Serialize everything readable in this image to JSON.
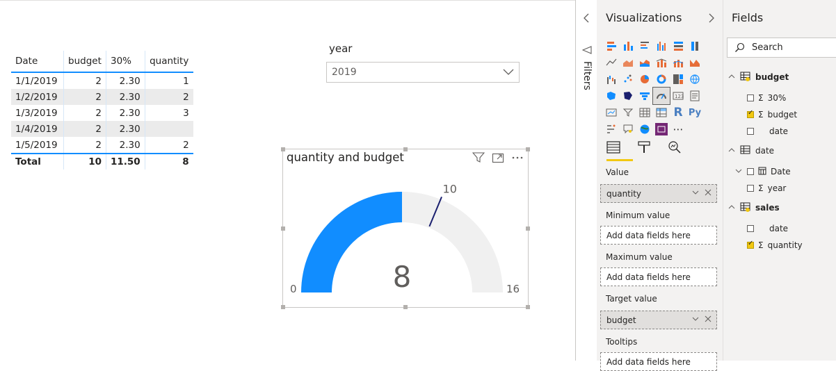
{
  "table": {
    "headers": [
      "Date",
      "budget",
      "30%",
      "quantity"
    ],
    "rows": [
      [
        "1/1/2019",
        "2",
        "2.30",
        "1"
      ],
      [
        "1/2/2019",
        "2",
        "2.30",
        "2"
      ],
      [
        "1/3/2019",
        "2",
        "2.30",
        "3"
      ],
      [
        "1/4/2019",
        "2",
        "2.30",
        ""
      ],
      [
        "1/5/2019",
        "2",
        "2.30",
        "2"
      ]
    ],
    "total": [
      "Total",
      "10",
      "11.50",
      "8"
    ]
  },
  "slicer": {
    "title": "year",
    "value": "2019"
  },
  "gauge": {
    "title": "quantity and budget",
    "value_label": "8",
    "min_label": "0",
    "max_label": "16",
    "target_label": "10",
    "value": 8,
    "min": 0,
    "max": 16,
    "target": 10,
    "fill_color": "#118dff",
    "track_color": "#f0f0f0",
    "target_color": "#1a1f6e"
  },
  "filters_pane": {
    "label": "Filters"
  },
  "visualizations": {
    "title": "Visualizations",
    "value_label": "Value",
    "value_field": "quantity",
    "minimum_label": "Minimum value",
    "minimum_placeholder": "Add data fields here",
    "maximum_label": "Maximum value",
    "maximum_placeholder": "Add data fields here",
    "target_label": "Target value",
    "target_field": "budget",
    "tooltips_label": "Tooltips",
    "tooltips_placeholder": "Add data fields here"
  },
  "fields": {
    "title": "Fields",
    "search_placeholder": "Search",
    "tables": [
      {
        "name": "budget",
        "items": [
          {
            "label": "30%",
            "checked": false,
            "sigma": true
          },
          {
            "label": "budget",
            "checked": true,
            "sigma": true
          },
          {
            "label": "date",
            "checked": false,
            "sigma": false
          }
        ]
      },
      {
        "name": "date",
        "items": [
          {
            "label": "Date",
            "checked": false,
            "sigma": false,
            "hierarchy": true
          },
          {
            "label": "year",
            "checked": false,
            "sigma": true
          }
        ]
      },
      {
        "name": "sales",
        "items": [
          {
            "label": "date",
            "checked": false,
            "sigma": false
          },
          {
            "label": "quantity",
            "checked": true,
            "sigma": true
          }
        ]
      }
    ]
  },
  "accent_colors": {
    "primary": "#118dff",
    "highlight": "#f2c811",
    "pane_bg": "#f3f2f1"
  }
}
